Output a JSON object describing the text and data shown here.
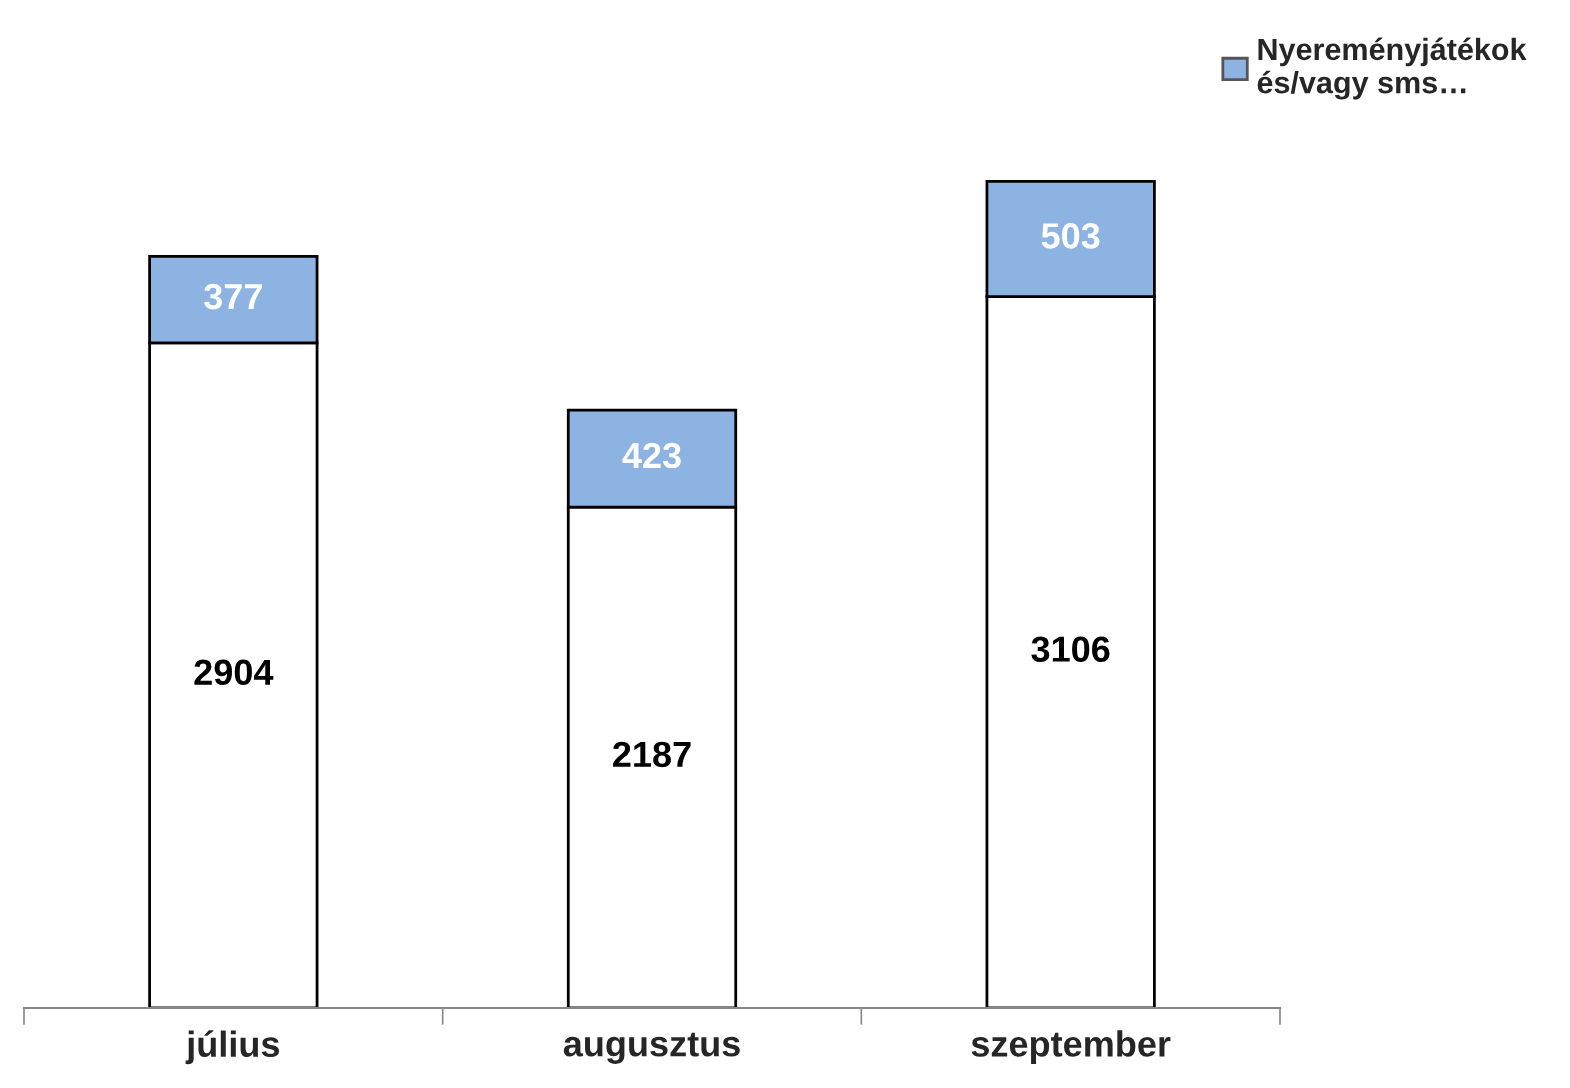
{
  "chart_data": {
    "type": "bar",
    "stacked": true,
    "categories": [
      "július",
      "augusztus",
      "szeptember"
    ],
    "series": [
      {
        "color": "#ffffff",
        "values": [
          2904,
          2187,
          3106
        ]
      },
      {
        "name": "Nyereményjátékok\nés/vagy sms…",
        "color": "#8db3e2",
        "values": [
          377,
          423,
          503
        ]
      }
    ],
    "data_labels": true,
    "legend": "top right",
    "grid": false
  }
}
